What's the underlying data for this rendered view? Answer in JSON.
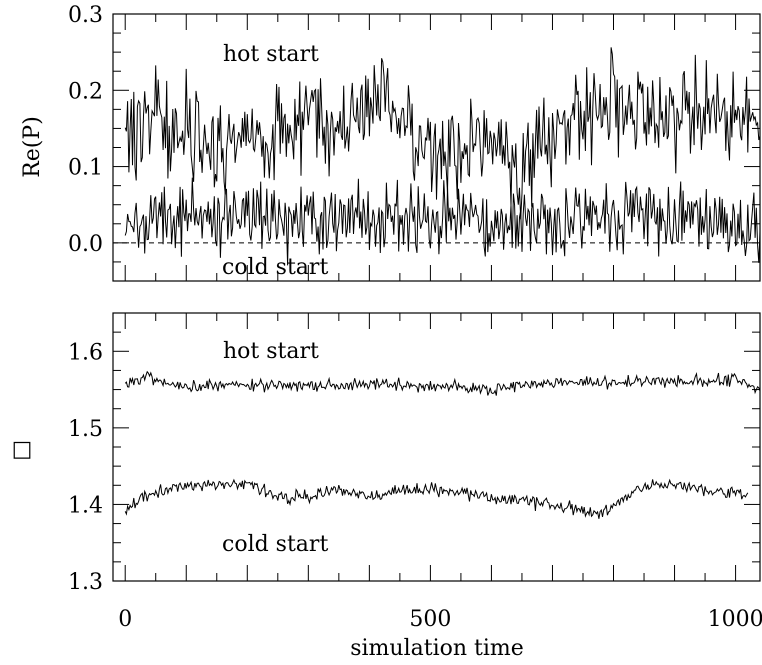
{
  "chart_data": [
    {
      "type": "line",
      "panel": "top",
      "ylabel": "Re(P)",
      "xlim": [
        -20,
        1040
      ],
      "ylim": [
        -0.05,
        0.3
      ],
      "yticks": [
        0.0,
        0.1,
        0.2,
        0.3
      ],
      "ytick_labels": [
        "0.0",
        "0.1",
        "0.2",
        "0.3"
      ],
      "reference_line": {
        "y": 0.0,
        "style": "dashed"
      },
      "annotations": [
        {
          "text": "hot start",
          "x": 170,
          "y": 0.25
        },
        {
          "text": "cold start",
          "x": 170,
          "y": -0.03
        }
      ],
      "series": [
        {
          "id": "hot",
          "x": [
            0,
            50,
            100,
            150,
            200,
            250,
            300,
            350,
            400,
            430,
            450,
            500,
            550,
            600,
            650,
            700,
            750,
            800,
            850,
            900,
            950,
            1000,
            1040
          ],
          "y": [
            0.14,
            0.17,
            0.15,
            0.12,
            0.14,
            0.15,
            0.16,
            0.16,
            0.18,
            0.19,
            0.15,
            0.12,
            0.13,
            0.12,
            0.1,
            0.14,
            0.17,
            0.18,
            0.17,
            0.16,
            0.18,
            0.17,
            0.15
          ],
          "noise": 0.03
        },
        {
          "id": "cold",
          "x": [
            0,
            50,
            100,
            150,
            200,
            250,
            300,
            350,
            400,
            450,
            500,
            550,
            600,
            650,
            700,
            750,
            800,
            850,
            900,
            950,
            1000,
            1040
          ],
          "y": [
            0.03,
            0.035,
            0.03,
            0.035,
            0.035,
            0.03,
            0.03,
            0.03,
            0.035,
            0.03,
            0.035,
            0.035,
            0.02,
            0.03,
            0.03,
            0.03,
            0.03,
            0.03,
            0.035,
            0.03,
            0.025,
            0.03
          ],
          "noise": 0.022
        }
      ]
    },
    {
      "type": "line",
      "panel": "bottom",
      "ylabel": "□",
      "xlabel": "simulation time",
      "xlim": [
        -20,
        1040
      ],
      "ylim": [
        1.3,
        1.65
      ],
      "yticks": [
        1.3,
        1.4,
        1.5,
        1.6
      ],
      "ytick_labels": [
        "1.3",
        "1.4",
        "1.5",
        "1.6"
      ],
      "xticks": [
        0,
        500,
        1000
      ],
      "xtick_labels": [
        "0",
        "500",
        "1000"
      ],
      "annotations": [
        {
          "text": "hot start",
          "x": 170,
          "y": 1.6
        },
        {
          "text": "cold start",
          "x": 170,
          "y": 1.35
        }
      ],
      "series": [
        {
          "id": "hot",
          "x": [
            0,
            30,
            60,
            100,
            150,
            200,
            250,
            300,
            350,
            400,
            450,
            500,
            550,
            600,
            650,
            700,
            750,
            800,
            850,
            900,
            950,
            1000,
            1040
          ],
          "y": [
            1.56,
            1.565,
            1.56,
            1.555,
            1.555,
            1.555,
            1.555,
            1.555,
            1.555,
            1.56,
            1.555,
            1.555,
            1.555,
            1.55,
            1.555,
            1.56,
            1.56,
            1.56,
            1.56,
            1.56,
            1.56,
            1.565,
            1.55
          ],
          "noise": 0.004
        },
        {
          "id": "cold",
          "x": [
            0,
            20,
            50,
            100,
            150,
            200,
            250,
            300,
            350,
            400,
            450,
            500,
            550,
            600,
            650,
            700,
            750,
            780,
            800,
            850,
            900,
            950,
            1000,
            1020
          ],
          "y": [
            1.39,
            1.405,
            1.415,
            1.425,
            1.425,
            1.43,
            1.41,
            1.41,
            1.42,
            1.41,
            1.42,
            1.42,
            1.415,
            1.41,
            1.405,
            1.4,
            1.39,
            1.385,
            1.4,
            1.425,
            1.425,
            1.42,
            1.415,
            1.41
          ],
          "noise": 0.004
        }
      ]
    }
  ]
}
